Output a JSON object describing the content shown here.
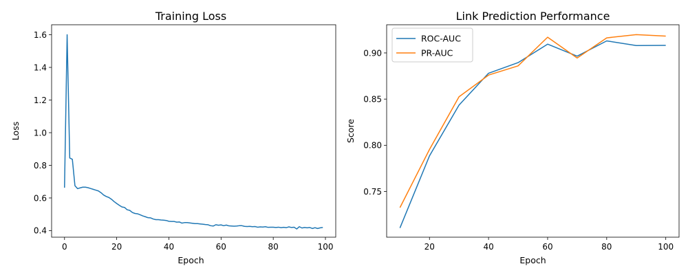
{
  "chart_data": [
    {
      "type": "line",
      "title": "Training Loss",
      "xlabel": "Epoch",
      "ylabel": "Loss",
      "xlim": [
        -4.95,
        103.95
      ],
      "ylim": [
        0.3597,
        1.6613
      ],
      "xticks": [
        0,
        20,
        40,
        60,
        80,
        100
      ],
      "yticks": [
        0.4,
        0.6,
        0.8,
        1.0,
        1.2,
        1.4,
        1.6
      ],
      "ytick_labels": [
        "0.4",
        "0.6",
        "0.8",
        "1.0",
        "1.2",
        "1.4",
        "1.6"
      ],
      "grid": false,
      "color": "#1f77b4",
      "series": [
        {
          "x": [
            0,
            1,
            2,
            3,
            4,
            5,
            6,
            7,
            8,
            9,
            10,
            11,
            12,
            13,
            14,
            15,
            16,
            17,
            18,
            19,
            20,
            21,
            22,
            23,
            24,
            25,
            26,
            27,
            28,
            29,
            30,
            31,
            32,
            33,
            34,
            35,
            36,
            37,
            38,
            39,
            40,
            41,
            42,
            43,
            44,
            45,
            46,
            47,
            48,
            49,
            50,
            51,
            52,
            53,
            54,
            55,
            56,
            57,
            58,
            59,
            60,
            61,
            62,
            63,
            64,
            65,
            66,
            67,
            68,
            69,
            70,
            71,
            72,
            73,
            74,
            75,
            76,
            77,
            78,
            79,
            80,
            81,
            82,
            83,
            84,
            85,
            86,
            87,
            88,
            89,
            90,
            91,
            92,
            93,
            94,
            95,
            96,
            97,
            98,
            99
          ],
          "values": [
            0.663,
            1.6,
            0.845,
            0.837,
            0.675,
            0.657,
            0.662,
            0.666,
            0.666,
            0.663,
            0.658,
            0.653,
            0.648,
            0.643,
            0.632,
            0.618,
            0.609,
            0.603,
            0.592,
            0.578,
            0.566,
            0.555,
            0.545,
            0.542,
            0.528,
            0.524,
            0.511,
            0.505,
            0.503,
            0.497,
            0.49,
            0.485,
            0.479,
            0.478,
            0.471,
            0.467,
            0.467,
            0.465,
            0.464,
            0.462,
            0.457,
            0.456,
            0.456,
            0.452,
            0.453,
            0.446,
            0.449,
            0.449,
            0.447,
            0.445,
            0.443,
            0.443,
            0.441,
            0.439,
            0.437,
            0.436,
            0.43,
            0.428,
            0.436,
            0.433,
            0.435,
            0.43,
            0.434,
            0.429,
            0.428,
            0.427,
            0.428,
            0.43,
            0.43,
            0.426,
            0.425,
            0.426,
            0.424,
            0.425,
            0.421,
            0.423,
            0.422,
            0.424,
            0.42,
            0.421,
            0.421,
            0.419,
            0.421,
            0.418,
            0.42,
            0.418,
            0.423,
            0.419,
            0.421,
            0.41,
            0.424,
            0.416,
            0.419,
            0.417,
            0.419,
            0.413,
            0.418,
            0.413,
            0.417,
            0.419
          ]
        }
      ]
    },
    {
      "type": "line",
      "title": "Link Prediction Performance",
      "xlabel": "Epoch",
      "ylabel": "Score",
      "xlim": [
        5.5,
        104.5
      ],
      "ylim": [
        0.7005,
        0.9305
      ],
      "xticks": [
        20,
        40,
        60,
        80,
        100
      ],
      "yticks": [
        0.75,
        0.8,
        0.85,
        0.9
      ],
      "ytick_labels": [
        "0.75",
        "0.80",
        "0.85",
        "0.90"
      ],
      "grid": false,
      "legend": "top-left",
      "x": [
        10,
        20,
        30,
        40,
        50,
        60,
        70,
        80,
        90,
        100
      ],
      "series": [
        {
          "name": "ROC-AUC",
          "color": "#1f77b4",
          "values": [
            0.7105,
            0.7885,
            0.8435,
            0.878,
            0.8895,
            0.9095,
            0.8965,
            0.913,
            0.908,
            0.9082
          ]
        },
        {
          "name": "PR-AUC",
          "color": "#ff7f0e",
          "values": [
            0.7325,
            0.7955,
            0.8525,
            0.876,
            0.886,
            0.917,
            0.8945,
            0.9163,
            0.9198,
            0.9182
          ]
        }
      ]
    }
  ]
}
